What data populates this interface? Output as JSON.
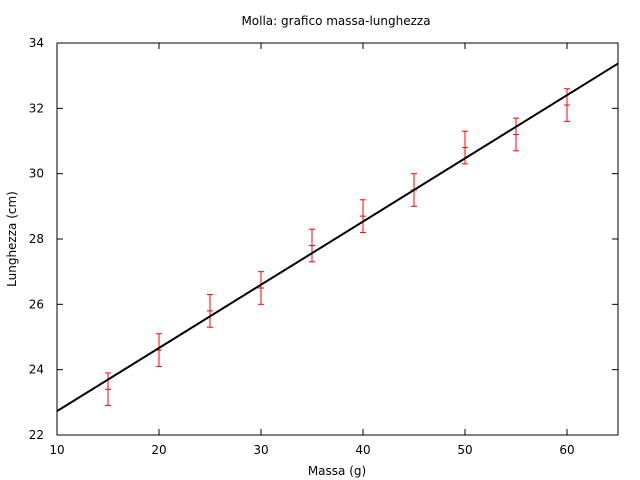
{
  "chart_data": {
    "type": "scatter",
    "title": "Molla: grafico massa-lunghezza",
    "xlabel": "Massa (g)",
    "ylabel": "Lunghezza (cm)",
    "xlim": [
      10,
      65
    ],
    "ylim": [
      22,
      34
    ],
    "xticks": [
      "10",
      "20",
      "30",
      "40",
      "50",
      "60"
    ],
    "yticks": [
      "22",
      "24",
      "26",
      "28",
      "30",
      "32",
      "34"
    ],
    "grid": false,
    "series": [
      {
        "kind": "points_with_errorbars",
        "color": "#ff0000",
        "x": [
          15,
          20,
          25,
          30,
          35,
          40,
          45,
          50,
          55,
          60
        ],
        "y": [
          23.4,
          24.6,
          25.8,
          26.5,
          27.8,
          28.7,
          29.5,
          30.8,
          31.2,
          32.1
        ],
        "yerr": [
          0.5,
          0.5,
          0.5,
          0.5,
          0.5,
          0.5,
          0.5,
          0.5,
          0.5,
          0.5
        ]
      },
      {
        "kind": "fit_line",
        "color": "#000000",
        "x": [
          10,
          65
        ],
        "y": [
          22.73,
          33.37
        ]
      }
    ]
  }
}
